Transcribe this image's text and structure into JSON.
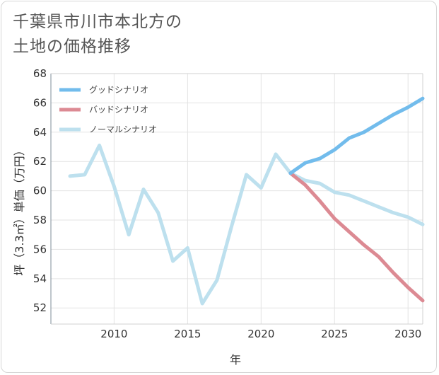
{
  "chart_data": {
    "type": "line",
    "title": [
      "千葉県市川市本北方の",
      "土地の価格推移"
    ],
    "xlabel": "年",
    "ylabel": "坪（3.3㎡）単価（万円）",
    "xlim": [
      2005.7,
      2031
    ],
    "ylim": [
      50.9,
      68
    ],
    "xticks": [
      2010,
      2015,
      2020,
      2025,
      2030
    ],
    "yticks": [
      52,
      54,
      56,
      58,
      60,
      62,
      64,
      66,
      68
    ],
    "grid": true,
    "legend_position": "top-left",
    "series": [
      {
        "name": "グッドシナリオ",
        "color": "#72bcec",
        "x": [
          2022,
          2023,
          2024,
          2025,
          2026,
          2027,
          2028,
          2029,
          2030,
          2031
        ],
        "values": [
          61.2,
          61.9,
          62.2,
          62.8,
          63.6,
          64.0,
          64.6,
          65.2,
          65.7,
          66.3
        ]
      },
      {
        "name": "バッドシナリオ",
        "color": "#dc8a93",
        "x": [
          2022,
          2023,
          2024,
          2025,
          2026,
          2027,
          2028,
          2029,
          2030,
          2031
        ],
        "values": [
          61.2,
          60.4,
          59.3,
          58.1,
          57.2,
          56.3,
          55.5,
          54.4,
          53.4,
          52.5
        ]
      },
      {
        "name": "ノーマルシナリオ",
        "color": "#bde0ee",
        "x": [
          2007,
          2008,
          2009,
          2010,
          2011,
          2012,
          2013,
          2014,
          2015,
          2016,
          2017,
          2018,
          2019,
          2020,
          2021,
          2022,
          2023,
          2024,
          2025,
          2026,
          2027,
          2028,
          2029,
          2030,
          2031
        ],
        "values": [
          61.0,
          61.1,
          63.1,
          60.3,
          57.0,
          60.1,
          58.5,
          55.2,
          56.1,
          52.3,
          53.9,
          57.6,
          61.1,
          60.2,
          62.5,
          61.2,
          60.7,
          60.5,
          59.9,
          59.7,
          59.3,
          58.9,
          58.5,
          58.2,
          57.7
        ]
      }
    ]
  }
}
